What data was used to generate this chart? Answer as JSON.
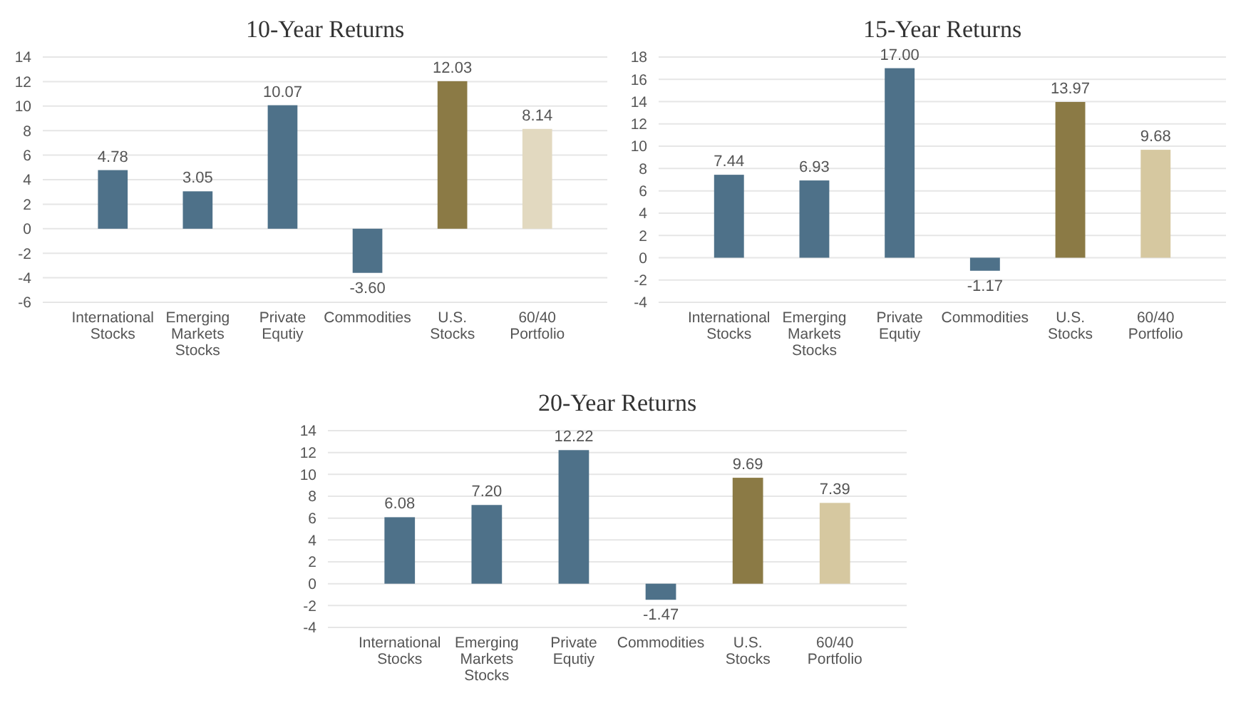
{
  "chart_data": [
    {
      "type": "bar",
      "title": "10-Year Returns",
      "categories": [
        "International Stocks",
        "Emerging Markets Stocks",
        "Private Equtiy",
        "Commodities",
        "U.S. Stocks",
        "60/40 Portfolio"
      ],
      "values": [
        4.78,
        3.05,
        10.07,
        -3.6,
        12.03,
        8.14
      ],
      "value_labels": [
        "4.78",
        "3.05",
        "10.07",
        "-3.60",
        "12.03",
        "8.14"
      ],
      "colors": [
        "#4e7189",
        "#4e7189",
        "#4e7189",
        "#4e7189",
        "#8b7a45",
        "#e2d9c0"
      ],
      "ylim": [
        -6,
        14
      ],
      "yticks": [
        -6,
        -4,
        -2,
        0,
        2,
        4,
        6,
        8,
        10,
        12,
        14
      ],
      "grid": "y"
    },
    {
      "type": "bar",
      "title": "15-Year Returns",
      "categories": [
        "International Stocks",
        "Emerging Markets Stocks",
        "Private Equtiy",
        "Commodities",
        "U.S. Stocks",
        "60/40 Portfolio"
      ],
      "values": [
        7.44,
        6.93,
        17.0,
        -1.17,
        13.97,
        9.68
      ],
      "value_labels": [
        "7.44",
        "6.93",
        "17.00",
        "-1.17",
        "13.97",
        "9.68"
      ],
      "colors": [
        "#4e7189",
        "#4e7189",
        "#4e7189",
        "#4e7189",
        "#8b7a45",
        "#d6c8a0"
      ],
      "ylim": [
        -4,
        18
      ],
      "yticks": [
        -4,
        -2,
        0,
        2,
        4,
        6,
        8,
        10,
        12,
        14,
        16,
        18
      ],
      "grid": "y"
    },
    {
      "type": "bar",
      "title": "20-Year Returns",
      "categories": [
        "International Stocks",
        "Emerging Markets Stocks",
        "Private Equtiy",
        "Commodities",
        "U.S. Stocks",
        "60/40 Portfolio"
      ],
      "values": [
        6.08,
        7.2,
        12.22,
        -1.47,
        9.69,
        7.39
      ],
      "value_labels": [
        "6.08",
        "7.20",
        "12.22",
        "-1.47",
        "9.69",
        "7.39"
      ],
      "colors": [
        "#4e7189",
        "#4e7189",
        "#4e7189",
        "#4e7189",
        "#8b7a45",
        "#d6c8a0"
      ],
      "ylim": [
        -4,
        14
      ],
      "yticks": [
        -4,
        -2,
        0,
        2,
        4,
        6,
        8,
        10,
        12,
        14
      ],
      "grid": "y"
    }
  ]
}
